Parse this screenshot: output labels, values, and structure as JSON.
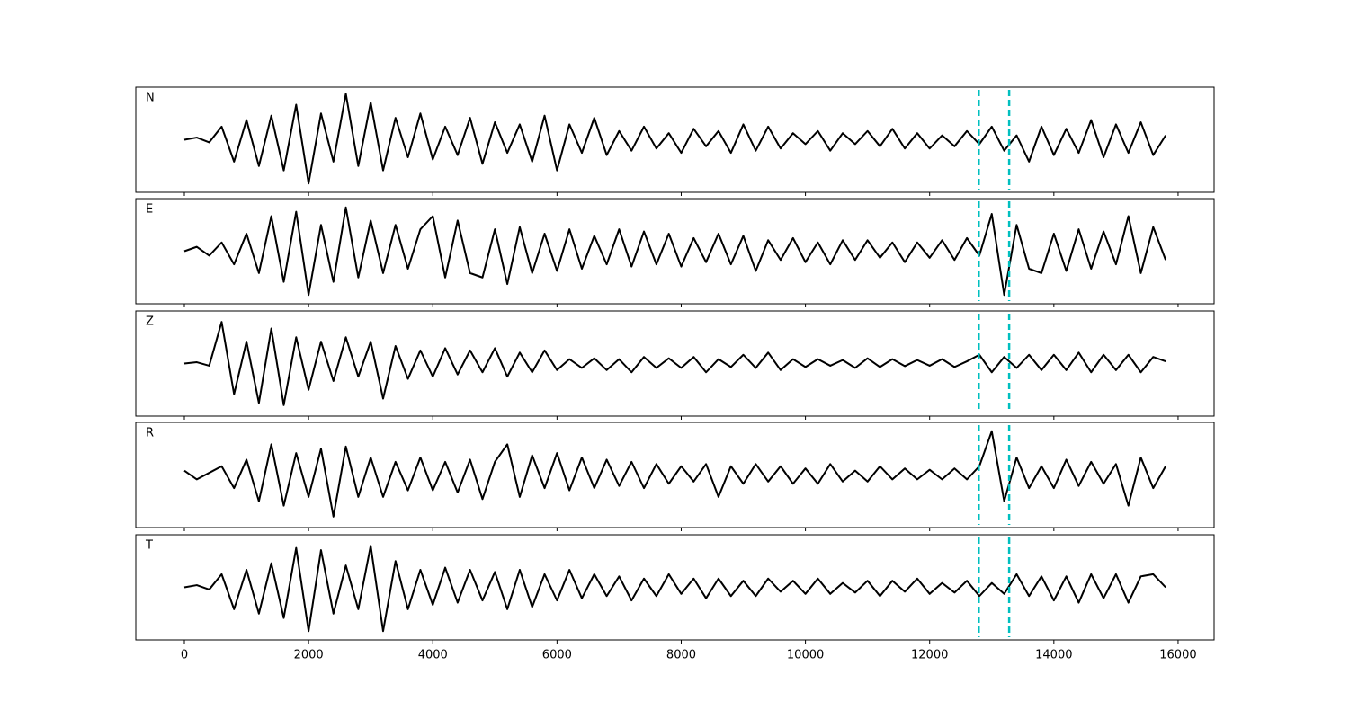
{
  "chart_data": [
    {
      "type": "line",
      "annotation": "N",
      "color": "#000000",
      "xlim": [
        -782,
        16580
      ],
      "ylim": [
        -1.2,
        1.2
      ],
      "vlines": [
        12790,
        13280
      ],
      "vline_color": "#00bfbf",
      "x": [
        0,
        200,
        400,
        600,
        800,
        1000,
        1200,
        1400,
        1600,
        1800,
        2000,
        2200,
        2400,
        2600,
        2800,
        3000,
        3200,
        3400,
        3600,
        3800,
        4000,
        4200,
        4400,
        4600,
        4800,
        5000,
        5200,
        5400,
        5600,
        5800,
        6000,
        6200,
        6400,
        6600,
        6800,
        7000,
        7200,
        7400,
        7600,
        7800,
        8000,
        8200,
        8400,
        8600,
        8800,
        9000,
        9200,
        9400,
        9600,
        9800,
        10000,
        10200,
        10400,
        10600,
        10800,
        11000,
        11200,
        11400,
        11600,
        11800,
        12000,
        12200,
        12400,
        12600,
        12800,
        13000,
        13200,
        13400,
        13600,
        13800,
        14000,
        14200,
        14400,
        14600,
        14800,
        15000,
        15200,
        15400,
        15600,
        15800
      ],
      "values": [
        0,
        0.05,
        -0.06,
        0.3,
        -0.5,
        0.45,
        -0.6,
        0.55,
        -0.7,
        0.8,
        -1.0,
        0.6,
        -0.5,
        1.05,
        -0.6,
        0.85,
        -0.7,
        0.5,
        -0.4,
        0.6,
        -0.45,
        0.3,
        -0.35,
        0.5,
        -0.55,
        0.4,
        -0.3,
        0.35,
        -0.5,
        0.55,
        -0.7,
        0.35,
        -0.3,
        0.5,
        -0.35,
        0.2,
        -0.25,
        0.3,
        -0.2,
        0.15,
        -0.3,
        0.25,
        -0.15,
        0.2,
        -0.3,
        0.35,
        -0.25,
        0.3,
        -0.2,
        0.15,
        -0.1,
        0.2,
        -0.25,
        0.15,
        -0.1,
        0.2,
        -0.15,
        0.25,
        -0.2,
        0.15,
        -0.2,
        0.1,
        -0.15,
        0.2,
        -0.1,
        0.3,
        -0.25,
        0.1,
        -0.5,
        0.3,
        -0.35,
        0.25,
        -0.3,
        0.45,
        -0.4,
        0.35,
        -0.3,
        0.4,
        -0.35,
        0.1
      ]
    },
    {
      "type": "line",
      "annotation": "E",
      "color": "#000000",
      "xlim": [
        -782,
        16580
      ],
      "ylim": [
        -1.2,
        1.2
      ],
      "vlines": [
        12790,
        13280
      ],
      "vline_color": "#00bfbf",
      "x": [
        0,
        200,
        400,
        600,
        800,
        1000,
        1200,
        1400,
        1600,
        1800,
        2000,
        2200,
        2400,
        2600,
        2800,
        3000,
        3200,
        3400,
        3600,
        3800,
        4000,
        4200,
        4400,
        4600,
        4800,
        5000,
        5200,
        5400,
        5600,
        5800,
        6000,
        6200,
        6400,
        6600,
        6800,
        7000,
        7200,
        7400,
        7600,
        7800,
        8000,
        8200,
        8400,
        8600,
        8800,
        9000,
        9200,
        9400,
        9600,
        9800,
        10000,
        10200,
        10400,
        10600,
        10800,
        11000,
        11200,
        11400,
        11600,
        11800,
        12000,
        12200,
        12400,
        12600,
        12800,
        13000,
        13200,
        13400,
        13600,
        13800,
        14000,
        14200,
        14400,
        14600,
        14800,
        15000,
        15200,
        15400,
        15600,
        15800
      ],
      "values": [
        0,
        0.1,
        -0.1,
        0.2,
        -0.3,
        0.4,
        -0.5,
        0.8,
        -0.7,
        0.9,
        -1.0,
        0.6,
        -0.7,
        1.0,
        -0.6,
        0.7,
        -0.5,
        0.6,
        -0.4,
        0.5,
        0.8,
        -0.6,
        0.7,
        -0.5,
        -0.6,
        0.5,
        -0.75,
        0.55,
        -0.5,
        0.4,
        -0.45,
        0.5,
        -0.4,
        0.35,
        -0.3,
        0.5,
        -0.35,
        0.45,
        -0.3,
        0.4,
        -0.35,
        0.3,
        -0.25,
        0.4,
        -0.3,
        0.35,
        -0.45,
        0.25,
        -0.2,
        0.3,
        -0.25,
        0.2,
        -0.3,
        0.25,
        -0.2,
        0.25,
        -0.15,
        0.2,
        -0.25,
        0.2,
        -0.15,
        0.25,
        -0.2,
        0.3,
        -0.1,
        0.85,
        -1.0,
        0.6,
        -0.4,
        -0.5,
        0.4,
        -0.45,
        0.5,
        -0.4,
        0.45,
        -0.3,
        0.8,
        -0.5,
        0.55,
        -0.2
      ]
    },
    {
      "type": "line",
      "annotation": "Z",
      "color": "#000000",
      "xlim": [
        -782,
        16580
      ],
      "ylim": [
        -1.2,
        1.2
      ],
      "vlines": [
        12790,
        13280
      ],
      "vline_color": "#00bfbf",
      "x": [
        0,
        200,
        400,
        600,
        800,
        1000,
        1200,
        1400,
        1600,
        1800,
        2000,
        2200,
        2400,
        2600,
        2800,
        3000,
        3200,
        3400,
        3600,
        3800,
        4000,
        4200,
        4400,
        4600,
        4800,
        5000,
        5200,
        5400,
        5600,
        5800,
        6000,
        6200,
        6400,
        6600,
        6800,
        7000,
        7200,
        7400,
        7600,
        7800,
        8000,
        8200,
        8400,
        8600,
        8800,
        9000,
        9200,
        9400,
        9600,
        9800,
        10000,
        10200,
        10400,
        10600,
        10800,
        11000,
        11200,
        11400,
        11600,
        11800,
        12000,
        12200,
        12400,
        12600,
        12800,
        13000,
        13200,
        13400,
        13600,
        13800,
        14000,
        14200,
        14400,
        14600,
        14800,
        15000,
        15200,
        15400,
        15600,
        15800
      ],
      "values": [
        0,
        0.03,
        -0.05,
        0.95,
        -0.7,
        0.5,
        -0.9,
        0.8,
        -0.95,
        0.6,
        -0.6,
        0.5,
        -0.4,
        0.6,
        -0.3,
        0.5,
        -0.8,
        0.4,
        -0.35,
        0.3,
        -0.3,
        0.35,
        -0.25,
        0.3,
        -0.2,
        0.35,
        -0.3,
        0.25,
        -0.2,
        0.3,
        -0.15,
        0.1,
        -0.1,
        0.12,
        -0.15,
        0.1,
        -0.2,
        0.15,
        -0.1,
        0.12,
        -0.1,
        0.15,
        -0.2,
        0.1,
        -0.08,
        0.2,
        -0.1,
        0.25,
        -0.15,
        0.1,
        -0.08,
        0.1,
        -0.05,
        0.08,
        -0.1,
        0.12,
        -0.08,
        0.1,
        -0.06,
        0.08,
        -0.05,
        0.1,
        -0.08,
        0.05,
        0.2,
        -0.2,
        0.15,
        -0.1,
        0.2,
        -0.15,
        0.2,
        -0.15,
        0.25,
        -0.2,
        0.2,
        -0.15,
        0.2,
        -0.2,
        0.15,
        0.05
      ]
    },
    {
      "type": "line",
      "annotation": "R",
      "color": "#000000",
      "xlim": [
        -782,
        16580
      ],
      "ylim": [
        -1.2,
        1.2
      ],
      "vlines": [
        12790,
        13280
      ],
      "vline_color": "#00bfbf",
      "x": [
        0,
        200,
        400,
        600,
        800,
        1000,
        1200,
        1400,
        1600,
        1800,
        2000,
        2200,
        2400,
        2600,
        2800,
        3000,
        3200,
        3400,
        3600,
        3800,
        4000,
        4200,
        4400,
        4600,
        4800,
        5000,
        5200,
        5400,
        5600,
        5800,
        6000,
        6200,
        6400,
        6600,
        6800,
        7000,
        7200,
        7400,
        7600,
        7800,
        8000,
        8200,
        8400,
        8600,
        8800,
        9000,
        9200,
        9400,
        9600,
        9800,
        10000,
        10200,
        10400,
        10600,
        10800,
        11000,
        11200,
        11400,
        11600,
        11800,
        12000,
        12200,
        12400,
        12600,
        12800,
        13000,
        13200,
        13400,
        13600,
        13800,
        14000,
        14200,
        14400,
        14600,
        14800,
        15000,
        15200,
        15400,
        15600,
        15800
      ],
      "values": [
        0.1,
        -0.1,
        0.05,
        0.2,
        -0.3,
        0.35,
        -0.6,
        0.7,
        -0.7,
        0.5,
        -0.5,
        0.6,
        -0.95,
        0.65,
        -0.5,
        0.4,
        -0.5,
        0.3,
        -0.35,
        0.4,
        -0.35,
        0.3,
        -0.4,
        0.35,
        -0.55,
        0.3,
        0.7,
        -0.5,
        0.45,
        -0.3,
        0.5,
        -0.35,
        0.4,
        -0.3,
        0.35,
        -0.25,
        0.3,
        -0.3,
        0.25,
        -0.2,
        0.2,
        -0.15,
        0.25,
        -0.5,
        0.2,
        -0.2,
        0.25,
        -0.15,
        0.2,
        -0.2,
        0.15,
        -0.2,
        0.25,
        -0.15,
        0.1,
        -0.15,
        0.2,
        -0.1,
        0.15,
        -0.1,
        0.12,
        -0.1,
        0.15,
        -0.1,
        0.2,
        1.0,
        -0.6,
        0.4,
        -0.3,
        0.2,
        -0.3,
        0.35,
        -0.25,
        0.3,
        -0.2,
        0.25,
        -0.7,
        0.4,
        -0.3,
        0.2
      ]
    },
    {
      "type": "line",
      "annotation": "T",
      "color": "#000000",
      "xlim": [
        -782,
        16580
      ],
      "ylim": [
        -1.2,
        1.2
      ],
      "vlines": [
        12790,
        13280
      ],
      "vline_color": "#00bfbf",
      "xticks": [
        0,
        2000,
        4000,
        6000,
        8000,
        10000,
        12000,
        14000,
        16000
      ],
      "x": [
        0,
        200,
        400,
        600,
        800,
        1000,
        1200,
        1400,
        1600,
        1800,
        2000,
        2200,
        2400,
        2600,
        2800,
        3000,
        3200,
        3400,
        3600,
        3800,
        4000,
        4200,
        4400,
        4600,
        4800,
        5000,
        5200,
        5400,
        5600,
        5800,
        6000,
        6200,
        6400,
        6600,
        6800,
        7000,
        7200,
        7400,
        7600,
        7800,
        8000,
        8200,
        8400,
        8600,
        8800,
        9000,
        9200,
        9400,
        9600,
        9800,
        10000,
        10200,
        10400,
        10600,
        10800,
        11000,
        11200,
        11400,
        11600,
        11800,
        12000,
        12200,
        12400,
        12600,
        12800,
        13000,
        13200,
        13400,
        13600,
        13800,
        14000,
        14200,
        14400,
        14600,
        14800,
        15000,
        15200,
        15400,
        15600,
        15800
      ],
      "values": [
        0,
        0.05,
        -0.05,
        0.3,
        -0.5,
        0.4,
        -0.6,
        0.55,
        -0.7,
        0.9,
        -1.0,
        0.85,
        -0.6,
        0.5,
        -0.5,
        0.95,
        -1.0,
        0.6,
        -0.5,
        0.4,
        -0.4,
        0.45,
        -0.35,
        0.4,
        -0.3,
        0.35,
        -0.5,
        0.4,
        -0.45,
        0.3,
        -0.3,
        0.4,
        -0.25,
        0.3,
        -0.2,
        0.25,
        -0.3,
        0.2,
        -0.2,
        0.3,
        -0.15,
        0.2,
        -0.25,
        0.2,
        -0.2,
        0.15,
        -0.2,
        0.2,
        -0.1,
        0.15,
        -0.15,
        0.2,
        -0.15,
        0.1,
        -0.12,
        0.15,
        -0.2,
        0.15,
        -0.1,
        0.2,
        -0.15,
        0.1,
        -0.12,
        0.15,
        -0.2,
        0.1,
        -0.15,
        0.3,
        -0.2,
        0.25,
        -0.3,
        0.25,
        -0.35,
        0.3,
        -0.25,
        0.3,
        -0.35,
        0.25,
        0.3,
        0.0
      ]
    }
  ]
}
